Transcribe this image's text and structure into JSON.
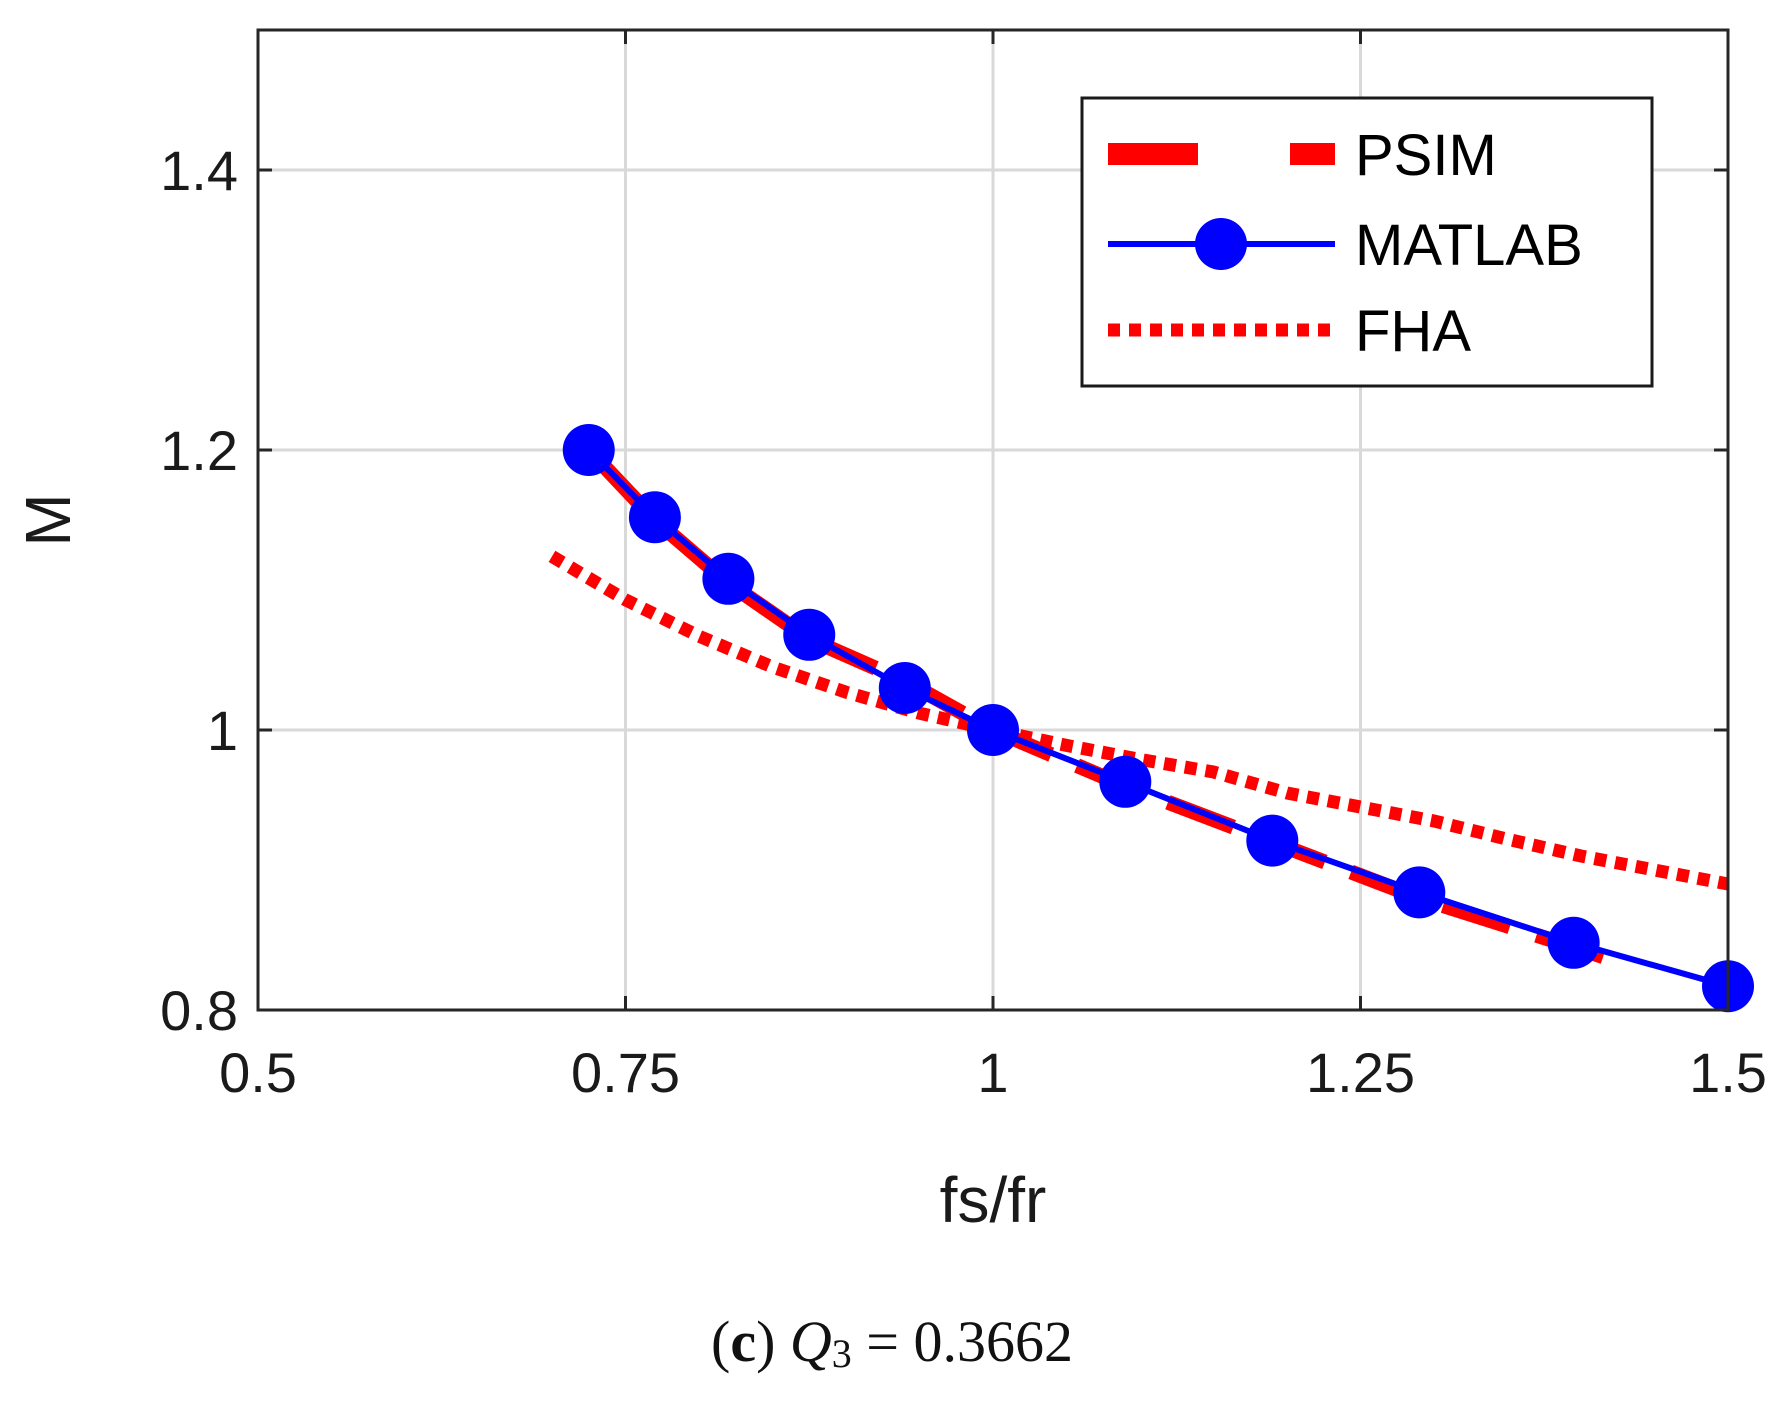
{
  "chart_data": {
    "type": "line",
    "xlabel": "fs/fr",
    "ylabel": "M",
    "xlim": [
      0.5,
      1.5
    ],
    "ylim": [
      0.8,
      1.5
    ],
    "xticks": [
      0.5,
      0.75,
      1,
      1.25,
      1.5
    ],
    "xtick_labels": [
      "0.5",
      "0.75",
      "1",
      "1.25",
      "1.5"
    ],
    "yticks": [
      0.8,
      1,
      1.2,
      1.4
    ],
    "ytick_labels": [
      "0.8",
      "1",
      "1.2",
      "1.4"
    ],
    "grid": true,
    "legend_position": "top-right",
    "series": [
      {
        "name": "PSIM",
        "color": "#ff0000",
        "style": "dashed",
        "x": [
          0.725,
          0.77,
          0.82,
          0.875,
          0.94,
          1.0,
          1.09,
          1.19,
          1.29,
          1.395,
          1.43
        ],
        "y": [
          1.2,
          1.15,
          1.105,
          1.065,
          1.035,
          1.0,
          0.96,
          0.92,
          0.88,
          0.845,
          0.833
        ]
      },
      {
        "name": "MATLAB",
        "color": "#0000ff",
        "style": "solid-marker",
        "x": [
          0.725,
          0.77,
          0.82,
          0.875,
          0.94,
          1.0,
          1.09,
          1.19,
          1.29,
          1.395,
          1.5
        ],
        "y": [
          1.2,
          1.152,
          1.108,
          1.068,
          1.03,
          1.0,
          0.963,
          0.921,
          0.884,
          0.848,
          0.817
        ]
      },
      {
        "name": "FHA",
        "color": "#ff0000",
        "style": "dotted",
        "x": [
          0.7,
          0.75,
          0.8,
          0.85,
          0.9,
          0.95,
          1.0,
          1.05,
          1.1,
          1.15,
          1.2,
          1.25,
          1.3,
          1.35,
          1.4,
          1.45,
          1.5
        ],
        "y": [
          1.124,
          1.093,
          1.067,
          1.045,
          1.027,
          1.012,
          1.0,
          0.989,
          0.979,
          0.97,
          0.955,
          0.945,
          0.935,
          0.922,
          0.91,
          0.9,
          0.89
        ]
      }
    ]
  },
  "caption": {
    "open_paren": "(",
    "letter": "c",
    "close_paren": ")",
    "var": "Q",
    "sub": "3",
    "rest": " = 0.3662"
  }
}
